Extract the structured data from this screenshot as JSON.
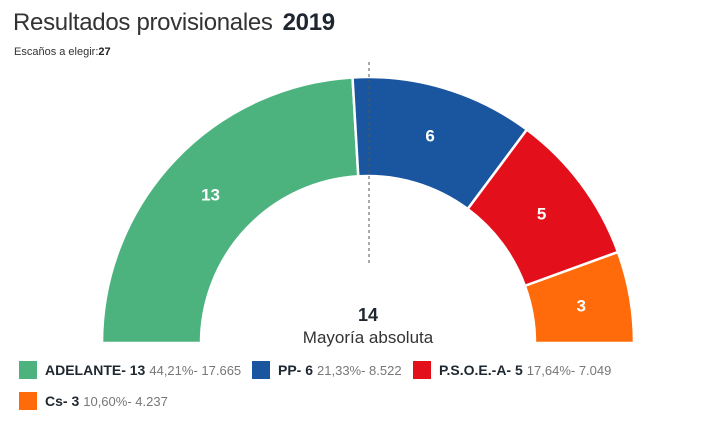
{
  "header": {
    "title": "Resultados provisionales",
    "year": "2019",
    "seats_label": "Escaños a elegir:",
    "seats_value": "27"
  },
  "majority": {
    "value": "14",
    "label": "Mayoría absoluta"
  },
  "chart_data": {
    "type": "pie",
    "subtype": "half-donut parliament",
    "title": "Resultados provisionales 2019",
    "total_seats": 27,
    "majority": 14,
    "categories": [
      "ADELANTE",
      "PP",
      "P.S.O.E.-A",
      "Cs"
    ],
    "values": [
      13,
      6,
      5,
      3
    ],
    "colors": [
      "#4cb37f",
      "#1a56a0",
      "#e3101b",
      "#ff6a0b"
    ],
    "series": [
      {
        "name": "ADELANTE",
        "seats": 13,
        "percent": "44,21%",
        "votes": "17.665",
        "color": "#4cb37f"
      },
      {
        "name": "PP",
        "seats": 6,
        "percent": "21,33%",
        "votes": "8.522",
        "color": "#1a56a0"
      },
      {
        "name": "P.S.O.E.-A",
        "seats": 5,
        "percent": "17,64%",
        "votes": "7.049",
        "color": "#e3101b"
      },
      {
        "name": "Cs",
        "seats": 3,
        "percent": "10,60%",
        "votes": "4.237",
        "color": "#ff6a0b"
      }
    ],
    "legend": "bottom"
  },
  "legend": [
    {
      "name": "ADELANTE- 13",
      "stat": "44,21%- 17.665",
      "color": "#4cb37f"
    },
    {
      "name": "PP- 6",
      "stat": "21,33%- 8.522",
      "color": "#1a56a0"
    },
    {
      "name": "P.S.O.E.-A- 5",
      "stat": "17,64%- 7.049",
      "color": "#e3101b"
    },
    {
      "name": "Cs- 3",
      "stat": "10,60%- 4.237",
      "color": "#ff6a0b"
    }
  ]
}
